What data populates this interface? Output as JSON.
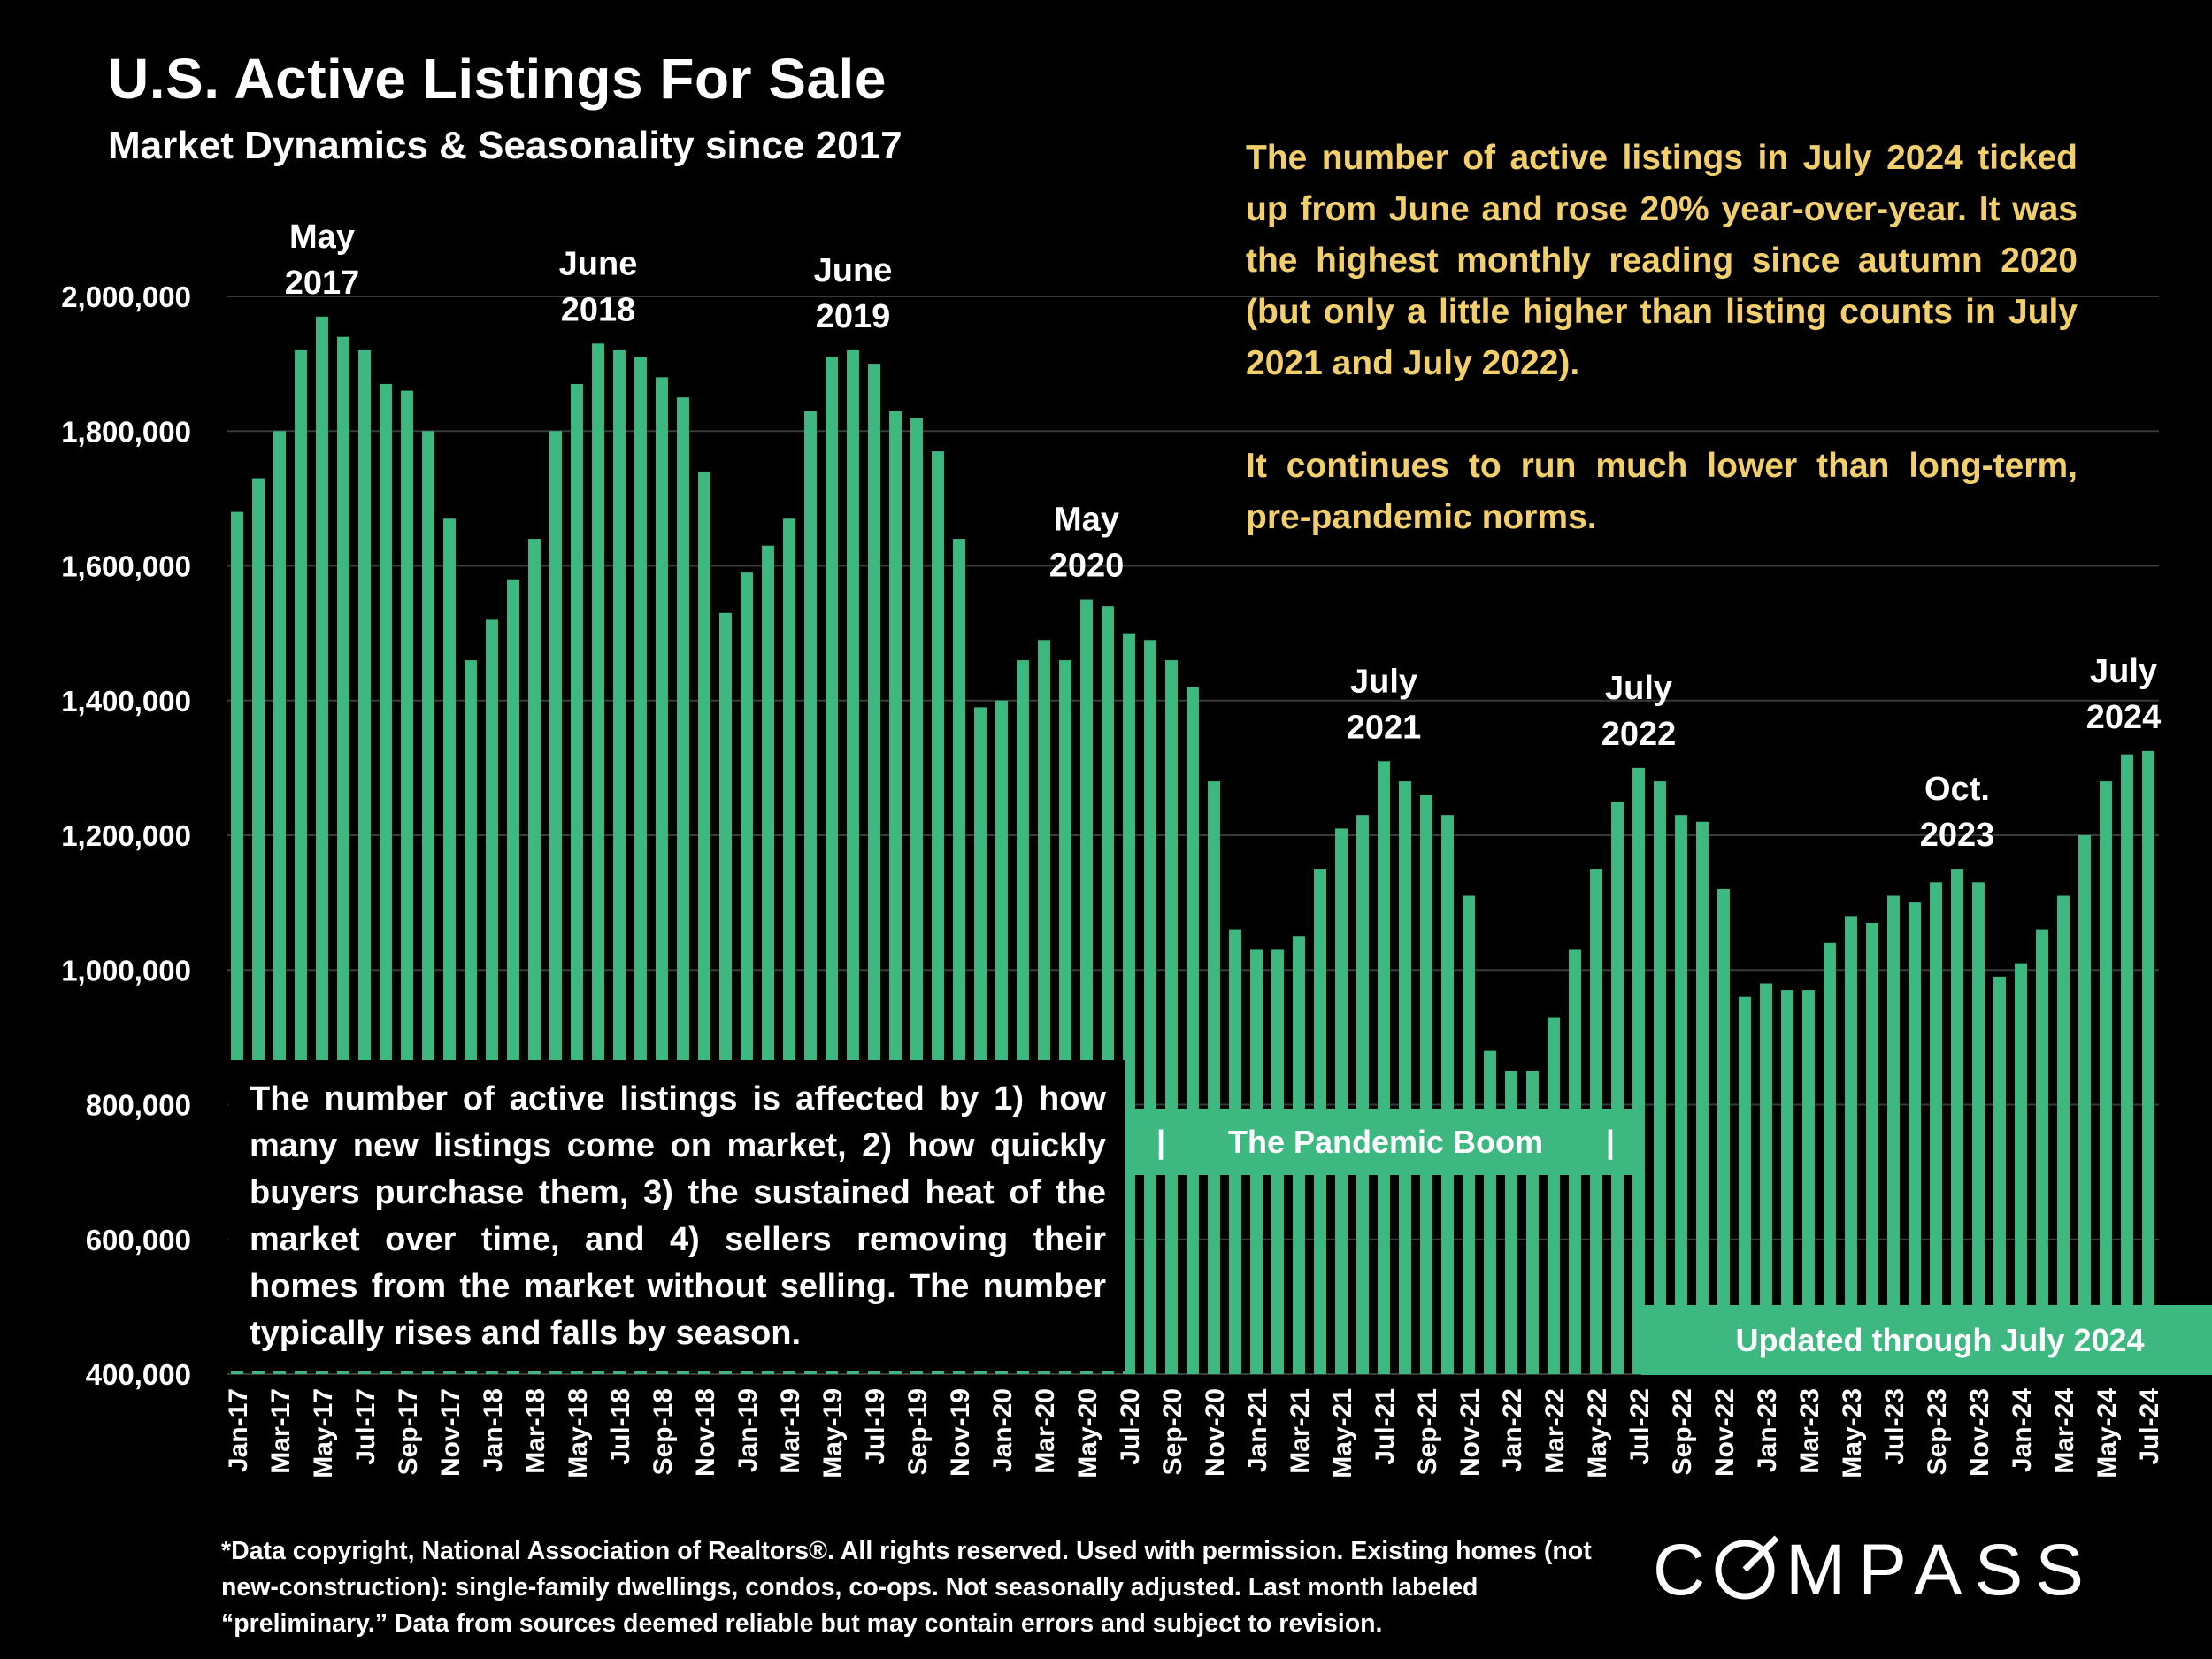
{
  "header": {
    "title": "U.S. Active Listings For Sale",
    "subtitle": "Market Dynamics & Seasonality since 2017"
  },
  "commentary": {
    "paragraph1": "The number of active listings in July 2024 ticked up from June and rose 20% year-over-year. It was the highest monthly reading since autumn 2020 (but only a little higher than listing counts in July 2021 and July 2022).",
    "paragraph2": "It continues to run much lower than long-term, pre-pandemic norms."
  },
  "info_box": {
    "text": "The number of active listings is affected by 1) how many new listings come on market, 2) how quickly buyers purchase them, 3) the sustained heat of the market over time, and 4) sellers removing their homes from the market without selling. The number typically rises and falls by season."
  },
  "bands": {
    "pandemic_left_bar": "|",
    "pandemic_label": "The Pandemic Boom",
    "pandemic_right_bar": "|",
    "updated_label": "Updated through July 2024"
  },
  "footnote": {
    "text": "*Data copyright, National Association of Realtors®. All rights reserved. Used with permission. Existing homes (not new-construction): single-family dwellings, condos, co-ops. Not seasonally adjusted. Last month labeled “preliminary.” Data from sources deemed reliable but may contain errors and subject to revision."
  },
  "logo": {
    "text": "COMPASS",
    "icon": "compass-logo"
  },
  "colors": {
    "bar": "#3cb880",
    "background": "#000000",
    "commentary_text": "#f2cf6b",
    "gridline": "#3a3a3a",
    "text": "#ffffff"
  },
  "chart_data": {
    "type": "bar",
    "ylim": [
      400000,
      2000000
    ],
    "yticks": [
      2000000,
      1800000,
      1600000,
      1400000,
      1200000,
      1000000,
      800000,
      600000,
      400000
    ],
    "ytick_labels": [
      "2,000,000",
      "1,800,000",
      "1,600,000",
      "1,400,000",
      "1,200,000",
      "1,000,000",
      "800,000",
      "600,000",
      "400,000"
    ],
    "grid": true,
    "categories": [
      "Jan-17",
      "Feb-17",
      "Mar-17",
      "Apr-17",
      "May-17",
      "Jun-17",
      "Jul-17",
      "Aug-17",
      "Sep-17",
      "Oct-17",
      "Nov-17",
      "Dec-17",
      "Jan-18",
      "Feb-18",
      "Mar-18",
      "Apr-18",
      "May-18",
      "Jun-18",
      "Jul-18",
      "Aug-18",
      "Sep-18",
      "Oct-18",
      "Nov-18",
      "Dec-18",
      "Jan-19",
      "Feb-19",
      "Mar-19",
      "Apr-19",
      "May-19",
      "Jun-19",
      "Jul-19",
      "Aug-19",
      "Sep-19",
      "Oct-19",
      "Nov-19",
      "Dec-19",
      "Jan-20",
      "Feb-20",
      "Mar-20",
      "Apr-20",
      "May-20",
      "Jun-20",
      "Jul-20",
      "Aug-20",
      "Sep-20",
      "Oct-20",
      "Nov-20",
      "Dec-20",
      "Jan-21",
      "Feb-21",
      "Mar-21",
      "Apr-21",
      "May-21",
      "Jun-21",
      "Jul-21",
      "Aug-21",
      "Sep-21",
      "Oct-21",
      "Nov-21",
      "Dec-21",
      "Jan-22",
      "Feb-22",
      "Mar-22",
      "Apr-22",
      "May-22",
      "Jun-22",
      "Jul-22",
      "Aug-22",
      "Sep-22",
      "Oct-22",
      "Nov-22",
      "Dec-22",
      "Jan-23",
      "Feb-23",
      "Mar-23",
      "Apr-23",
      "May-23",
      "Jun-23",
      "Jul-23",
      "Aug-23",
      "Sep-23",
      "Oct-23",
      "Nov-23",
      "Dec-23",
      "Jan-24",
      "Feb-24",
      "Mar-24",
      "Apr-24",
      "May-24",
      "Jun-24",
      "Jul-24"
    ],
    "xtick_labels": [
      "Jan-17",
      "Mar-17",
      "May-17",
      "Jul-17",
      "Sep-17",
      "Nov-17",
      "Jan-18",
      "Mar-18",
      "May-18",
      "Jul-18",
      "Sep-18",
      "Nov-18",
      "Jan-19",
      "Mar-19",
      "May-19",
      "Jul-19",
      "Sep-19",
      "Nov-19",
      "Jan-20",
      "Mar-20",
      "May-20",
      "Jul-20",
      "Sep-20",
      "Nov-20",
      "Jan-21",
      "Mar-21",
      "May-21",
      "Jul-21",
      "Sep-21",
      "Nov-21",
      "Jan-22",
      "Mar-22",
      "May-22",
      "Jul-22",
      "Sep-22",
      "Nov-22",
      "Jan-23",
      "Mar-23",
      "May-23",
      "Jul-23",
      "Sep-23",
      "Nov-23",
      "Jan-24",
      "Mar-24",
      "May-24",
      "Jul-24"
    ],
    "values": [
      1680000,
      1730000,
      1800000,
      1920000,
      1970000,
      1940000,
      1920000,
      1870000,
      1860000,
      1800000,
      1670000,
      1460000,
      1520000,
      1580000,
      1640000,
      1800000,
      1870000,
      1930000,
      1920000,
      1910000,
      1880000,
      1850000,
      1740000,
      1530000,
      1590000,
      1630000,
      1670000,
      1830000,
      1910000,
      1920000,
      1900000,
      1830000,
      1820000,
      1770000,
      1640000,
      1390000,
      1400000,
      1460000,
      1490000,
      1460000,
      1550000,
      1540000,
      1500000,
      1490000,
      1460000,
      1420000,
      1280000,
      1060000,
      1030000,
      1030000,
      1050000,
      1150000,
      1210000,
      1230000,
      1310000,
      1280000,
      1260000,
      1230000,
      1110000,
      880000,
      850000,
      850000,
      930000,
      1030000,
      1150000,
      1250000,
      1300000,
      1280000,
      1230000,
      1220000,
      1120000,
      960000,
      980000,
      970000,
      970000,
      1040000,
      1080000,
      1070000,
      1110000,
      1100000,
      1130000,
      1150000,
      1130000,
      990000,
      1010000,
      1060000,
      1110000,
      1200000,
      1280000,
      1320000,
      1325000
    ],
    "annotations": [
      {
        "category": "May-17",
        "line1": "May",
        "line2": "2017"
      },
      {
        "category": "Jun-18",
        "line1": "June",
        "line2": "2018"
      },
      {
        "category": "Jun-19",
        "line1": "June",
        "line2": "2019"
      },
      {
        "category": "May-20",
        "line1": "May",
        "line2": "2020"
      },
      {
        "category": "Jul-21",
        "line1": "July",
        "line2": "2021"
      },
      {
        "category": "Jul-22",
        "line1": "July",
        "line2": "2022"
      },
      {
        "category": "Oct-23",
        "line1": "Oct.",
        "line2": "2023"
      },
      {
        "category": "Jul-24",
        "line1": "July",
        "line2": "2024"
      }
    ]
  }
}
